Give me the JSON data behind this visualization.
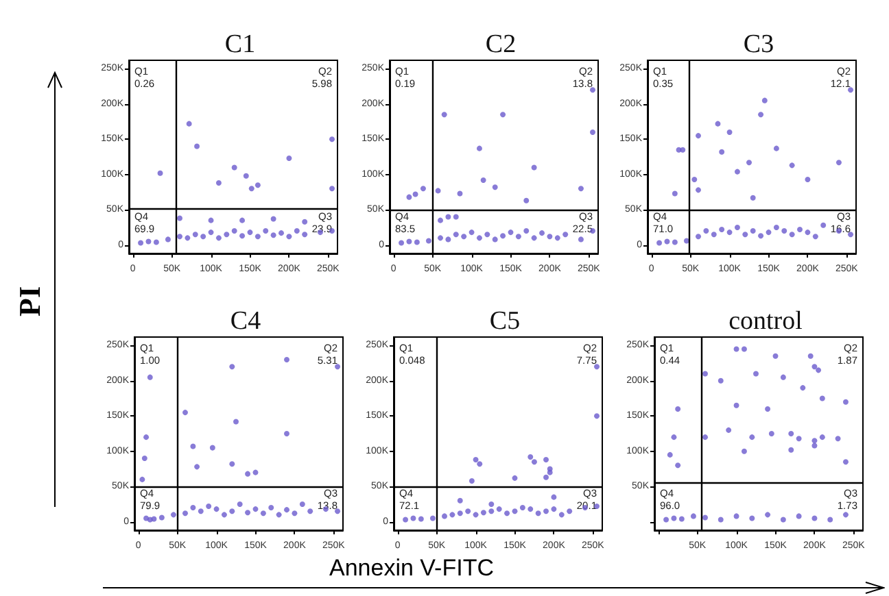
{
  "chart_data": [
    {
      "type": "scatter",
      "title": "C1",
      "ylabel": "PI",
      "color": "#6a5acd",
      "marker": "circle",
      "grid": false,
      "x": [
        72000,
        82000,
        130000,
        145000,
        110000,
        152000,
        160000,
        200000,
        35000,
        10000,
        20000,
        30000,
        45000,
        60000,
        70000,
        80000,
        90000,
        100000,
        110000,
        120000,
        130000,
        140000,
        150000,
        160000,
        170000,
        180000,
        190000,
        200000,
        210000,
        220000,
        240000,
        255000,
        60000,
        100000,
        140000,
        180000,
        220000,
        255000,
        255000
      ],
      "values": [
        172000,
        140000,
        110000,
        98000,
        88000,
        80000,
        85000,
        123000,
        102000,
        3000,
        5000,
        4000,
        8000,
        12000,
        10000,
        15000,
        12000,
        18000,
        10000,
        15000,
        20000,
        13000,
        18000,
        12000,
        20000,
        14000,
        17000,
        12000,
        20000,
        15000,
        18000,
        20000,
        38000,
        35000,
        35000,
        37000,
        33000,
        150000,
        80000
      ],
      "xlim": [
        -5000,
        262000
      ],
      "ylim": [
        -12000,
        262000
      ],
      "xticks": [
        {
          "value": 0,
          "label": "0"
        },
        {
          "value": 50000,
          "label": "50K"
        },
        {
          "value": 100000,
          "label": "100K"
        },
        {
          "value": 150000,
          "label": "150K"
        },
        {
          "value": 200000,
          "label": "200K"
        },
        {
          "value": 250000,
          "label": "250K"
        }
      ],
      "yticks": [
        {
          "value": 0,
          "label": "0"
        },
        {
          "value": 50000,
          "label": "50K"
        },
        {
          "value": 100000,
          "label": "100K"
        },
        {
          "value": 150000,
          "label": "150K"
        },
        {
          "value": 200000,
          "label": "200K"
        },
        {
          "value": 250000,
          "label": "250K"
        }
      ],
      "ref_lines": [
        {
          "axis": "x",
          "value": 55000,
          "color": "#000000"
        },
        {
          "axis": "y",
          "value": 52000,
          "color": "#000000"
        }
      ],
      "annotations": [
        "Q1",
        "0.26",
        "Q2",
        "5.98",
        "Q4",
        "69.9",
        "Q3",
        "23.9"
      ]
    },
    {
      "type": "scatter",
      "title": "C2",
      "color": "#6a5acd",
      "marker": "circle",
      "grid": false,
      "x": [
        65000,
        140000,
        110000,
        115000,
        180000,
        85000,
        130000,
        170000,
        240000,
        20000,
        28000,
        38000,
        57000,
        10000,
        20000,
        30000,
        45000,
        60000,
        70000,
        80000,
        90000,
        100000,
        110000,
        120000,
        130000,
        140000,
        150000,
        160000,
        170000,
        180000,
        190000,
        200000,
        210000,
        220000,
        240000,
        255000,
        60000,
        70000,
        80000,
        255000,
        255000
      ],
      "values": [
        185000,
        185000,
        137000,
        92000,
        110000,
        73000,
        82000,
        63000,
        80000,
        68000,
        72000,
        80000,
        77000,
        3000,
        5000,
        4000,
        6000,
        10000,
        8000,
        15000,
        12000,
        18000,
        10000,
        15000,
        8000,
        13000,
        18000,
        12000,
        20000,
        10000,
        17000,
        12000,
        10000,
        15000,
        8000,
        20000,
        35000,
        40000,
        40000,
        220000,
        160000
      ],
      "xlim": [
        -5000,
        262000
      ],
      "ylim": [
        -12000,
        262000
      ],
      "xticks": [
        {
          "value": 0,
          "label": "0"
        },
        {
          "value": 50000,
          "label": "50K"
        },
        {
          "value": 100000,
          "label": "100K"
        },
        {
          "value": 150000,
          "label": "150K"
        },
        {
          "value": 200000,
          "label": "200K"
        },
        {
          "value": 250000,
          "label": "250K"
        }
      ],
      "yticks": [
        {
          "value": 0,
          "label": "0"
        },
        {
          "value": 50000,
          "label": "50K"
        },
        {
          "value": 100000,
          "label": "100K"
        },
        {
          "value": 150000,
          "label": "150K"
        },
        {
          "value": 200000,
          "label": "200K"
        },
        {
          "value": 250000,
          "label": "250K"
        }
      ],
      "ref_lines": [
        {
          "axis": "x",
          "value": 50000,
          "color": "#000000"
        },
        {
          "axis": "y",
          "value": 50000,
          "color": "#000000"
        }
      ],
      "annotations": [
        "Q1",
        "0.19",
        "Q2",
        "13.8",
        "Q4",
        "83.5",
        "Q3",
        "22.5"
      ]
    },
    {
      "type": "scatter",
      "title": "C3",
      "color": "#6a5acd",
      "marker": "circle",
      "grid": false,
      "x": [
        145000,
        140000,
        85000,
        100000,
        60000,
        90000,
        110000,
        125000,
        160000,
        180000,
        200000,
        240000,
        55000,
        60000,
        130000,
        35000,
        40000,
        30000,
        10000,
        20000,
        30000,
        45000,
        60000,
        70000,
        80000,
        90000,
        100000,
        110000,
        120000,
        130000,
        140000,
        150000,
        160000,
        170000,
        180000,
        190000,
        200000,
        210000,
        220000,
        240000,
        255000,
        255000
      ],
      "values": [
        205000,
        185000,
        172000,
        160000,
        155000,
        132000,
        104000,
        117000,
        137000,
        113000,
        93000,
        117000,
        93000,
        78000,
        67000,
        135000,
        135000,
        73000,
        3000,
        5000,
        4000,
        6000,
        12000,
        20000,
        15000,
        22000,
        18000,
        25000,
        15000,
        20000,
        13000,
        18000,
        25000,
        20000,
        15000,
        22000,
        18000,
        12000,
        28000,
        20000,
        15000,
        220000
      ],
      "xlim": [
        -5000,
        262000
      ],
      "ylim": [
        -12000,
        262000
      ],
      "xticks": [
        {
          "value": 0,
          "label": "0"
        },
        {
          "value": 50000,
          "label": "50K"
        },
        {
          "value": 100000,
          "label": "100K"
        },
        {
          "value": 150000,
          "label": "150K"
        },
        {
          "value": 200000,
          "label": "200K"
        },
        {
          "value": 250000,
          "label": "250K"
        }
      ],
      "yticks": [
        {
          "value": 0,
          "label": "0"
        },
        {
          "value": 50000,
          "label": "50K"
        },
        {
          "value": 100000,
          "label": "100K"
        },
        {
          "value": 150000,
          "label": "150K"
        },
        {
          "value": 200000,
          "label": "200K"
        },
        {
          "value": 250000,
          "label": "250K"
        }
      ],
      "ref_lines": [
        {
          "axis": "x",
          "value": 48000,
          "color": "#000000"
        },
        {
          "axis": "y",
          "value": 50000,
          "color": "#000000"
        }
      ],
      "annotations": [
        "Q1",
        "0.35",
        "Q2",
        "12.1",
        "Q4",
        "71.0",
        "Q3",
        "16.6"
      ]
    },
    {
      "type": "scatter",
      "title": "C4",
      "color": "#6a5acd",
      "marker": "circle",
      "grid": false,
      "x": [
        190000,
        120000,
        15000,
        60000,
        125000,
        190000,
        70000,
        95000,
        120000,
        75000,
        140000,
        150000,
        10000,
        8000,
        5000,
        15000,
        10000,
        20000,
        30000,
        45000,
        60000,
        70000,
        80000,
        90000,
        100000,
        110000,
        120000,
        130000,
        140000,
        150000,
        160000,
        170000,
        180000,
        190000,
        200000,
        210000,
        220000,
        240000,
        255000,
        255000
      ],
      "values": [
        230000,
        220000,
        205000,
        155000,
        142000,
        125000,
        107000,
        105000,
        82000,
        78000,
        68000,
        70000,
        120000,
        90000,
        60000,
        3000,
        5000,
        4000,
        6000,
        10000,
        12000,
        20000,
        15000,
        22000,
        18000,
        10000,
        15000,
        25000,
        13000,
        18000,
        12000,
        20000,
        10000,
        17000,
        12000,
        25000,
        15000,
        18000,
        15000,
        220000
      ],
      "xlim": [
        -5000,
        262000
      ],
      "ylim": [
        -12000,
        262000
      ],
      "xticks": [
        {
          "value": 0,
          "label": "0"
        },
        {
          "value": 50000,
          "label": "50K"
        },
        {
          "value": 100000,
          "label": "100K"
        },
        {
          "value": 150000,
          "label": "150K"
        },
        {
          "value": 200000,
          "label": "200K"
        },
        {
          "value": 250000,
          "label": "250K"
        }
      ],
      "yticks": [
        {
          "value": 0,
          "label": "0"
        },
        {
          "value": 50000,
          "label": "50K"
        },
        {
          "value": 100000,
          "label": "100K"
        },
        {
          "value": 150000,
          "label": "150K"
        },
        {
          "value": 200000,
          "label": "200K"
        },
        {
          "value": 250000,
          "label": "250K"
        }
      ],
      "ref_lines": [
        {
          "axis": "x",
          "value": 50000,
          "color": "#000000"
        },
        {
          "axis": "y",
          "value": 50000,
          "color": "#000000"
        }
      ],
      "annotations": [
        "Q1",
        "1.00",
        "Q2",
        "5.31",
        "Q4",
        "79.9",
        "Q3",
        "13.8"
      ]
    },
    {
      "type": "scatter",
      "title": "C5",
      "xlabel": "Annexin V-FITC",
      "color": "#6a5acd",
      "marker": "circle",
      "grid": false,
      "x": [
        100000,
        105000,
        170000,
        175000,
        190000,
        195000,
        150000,
        190000,
        195000,
        95000,
        10000,
        20000,
        30000,
        45000,
        60000,
        70000,
        80000,
        90000,
        100000,
        110000,
        120000,
        130000,
        140000,
        150000,
        160000,
        170000,
        180000,
        190000,
        200000,
        210000,
        220000,
        240000,
        255000,
        80000,
        120000,
        200000,
        255000,
        255000
      ],
      "values": [
        88000,
        82000,
        92000,
        85000,
        88000,
        70000,
        62000,
        63000,
        75000,
        58000,
        3000,
        5000,
        4000,
        5000,
        8000,
        10000,
        12000,
        15000,
        10000,
        13000,
        15000,
        18000,
        12000,
        15000,
        20000,
        18000,
        12000,
        15000,
        18000,
        10000,
        15000,
        20000,
        22000,
        30000,
        25000,
        35000,
        220000,
        150000
      ],
      "xlim": [
        -5000,
        262000
      ],
      "ylim": [
        -12000,
        262000
      ],
      "xticks": [
        {
          "value": 0,
          "label": "0"
        },
        {
          "value": 50000,
          "label": "50K"
        },
        {
          "value": 100000,
          "label": "100K"
        },
        {
          "value": 150000,
          "label": "150K"
        },
        {
          "value": 200000,
          "label": "200K"
        },
        {
          "value": 250000,
          "label": "250K"
        }
      ],
      "yticks": [
        {
          "value": 0,
          "label": "0"
        },
        {
          "value": 50000,
          "label": "50K"
        },
        {
          "value": 100000,
          "label": "100K"
        },
        {
          "value": 150000,
          "label": "150K"
        },
        {
          "value": 200000,
          "label": "200K"
        },
        {
          "value": 250000,
          "label": "250K"
        }
      ],
      "ref_lines": [
        {
          "axis": "x",
          "value": 50000,
          "color": "#000000"
        },
        {
          "axis": "y",
          "value": 50000,
          "color": "#000000"
        }
      ],
      "annotations": [
        "Q1",
        "0.048",
        "Q2",
        "7.75",
        "Q4",
        "72.1",
        "Q3",
        "20.1"
      ]
    },
    {
      "type": "scatter",
      "title": "control",
      "color": "#6a5acd",
      "marker": "circle",
      "grid": false,
      "x": [
        100000,
        110000,
        150000,
        195000,
        200000,
        60000,
        80000,
        125000,
        160000,
        185000,
        205000,
        100000,
        140000,
        210000,
        240000,
        60000,
        90000,
        120000,
        145000,
        170000,
        180000,
        200000,
        210000,
        230000,
        110000,
        170000,
        200000,
        240000,
        25000,
        20000,
        15000,
        25000,
        10000,
        20000,
        30000,
        45000,
        60000,
        80000,
        100000,
        120000,
        140000,
        160000,
        180000,
        200000,
        220000,
        240000
      ],
      "values": [
        245000,
        245000,
        235000,
        235000,
        220000,
        210000,
        200000,
        210000,
        205000,
        190000,
        215000,
        165000,
        160000,
        175000,
        170000,
        120000,
        130000,
        120000,
        125000,
        125000,
        118000,
        115000,
        120000,
        118000,
        100000,
        102000,
        108000,
        85000,
        160000,
        120000,
        95000,
        80000,
        3000,
        5000,
        4000,
        8000,
        6000,
        3000,
        8000,
        5000,
        10000,
        3000,
        8000,
        5000,
        3000,
        10000
      ],
      "xlim": [
        -5000,
        262000
      ],
      "ylim": [
        -12000,
        262000
      ],
      "xticks": [
        {
          "value": 0,
          "label": null
        },
        {
          "value": 50000,
          "label": "50K"
        },
        {
          "value": 100000,
          "label": "100K"
        },
        {
          "value": 150000,
          "label": "150K"
        },
        {
          "value": 200000,
          "label": "200K"
        },
        {
          "value": 250000,
          "label": "250K"
        }
      ],
      "yticks": [
        {
          "value": 0,
          "label": null
        },
        {
          "value": 50000,
          "label": "50K"
        },
        {
          "value": 100000,
          "label": "100K"
        },
        {
          "value": 150000,
          "label": "150K"
        },
        {
          "value": 200000,
          "label": "200K"
        },
        {
          "value": 250000,
          "label": "250K"
        }
      ],
      "ref_lines": [
        {
          "axis": "x",
          "value": 55000,
          "color": "#000000"
        },
        {
          "axis": "y",
          "value": 55000,
          "color": "#000000"
        }
      ],
      "annotations": [
        "Q1",
        "0.44",
        "Q2",
        "1.87",
        "Q4",
        "96.0",
        "Q3",
        "1.73"
      ]
    }
  ]
}
